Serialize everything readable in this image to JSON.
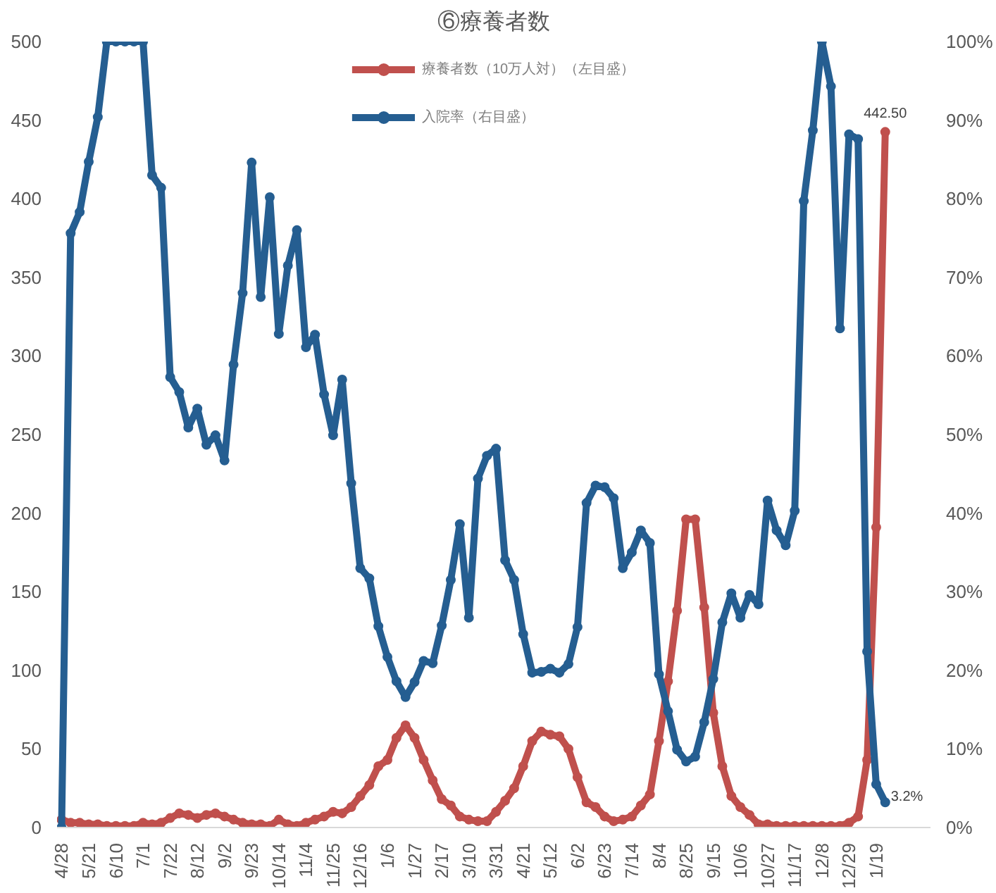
{
  "chart_data": {
    "type": "line",
    "title": "⑥療養者数",
    "categories": [
      "4/28",
      null,
      null,
      "5/21",
      null,
      null,
      "6/10",
      null,
      null,
      "7/1",
      null,
      null,
      "7/22",
      null,
      null,
      "8/12",
      null,
      null,
      "9/2",
      null,
      null,
      "9/23",
      null,
      null,
      "10/14",
      null,
      null,
      "11/4",
      null,
      null,
      "11/25",
      null,
      null,
      "12/16",
      null,
      null,
      "1/6",
      null,
      null,
      "1/27",
      null,
      null,
      "2/17",
      null,
      null,
      "3/10",
      null,
      null,
      "3/31",
      null,
      null,
      "4/21",
      null,
      null,
      "5/12",
      null,
      null,
      "6/2",
      null,
      null,
      "6/23",
      null,
      null,
      "7/14",
      null,
      null,
      "8/4",
      null,
      null,
      "8/25",
      null,
      null,
      "9/15",
      null,
      null,
      "10/6",
      null,
      null,
      "10/27",
      null,
      null,
      "11/17",
      null,
      null,
      "12/8",
      null,
      null,
      "12/29",
      null,
      null,
      "1/19",
      null
    ],
    "series": [
      {
        "name": "療養者数（10万人対）（左目盛）",
        "color": "#c0504d",
        "values": [
          5,
          3,
          3,
          2,
          2,
          1,
          1,
          1,
          1,
          3,
          2,
          3,
          6,
          9,
          8,
          6,
          8,
          9,
          7,
          5,
          3,
          2,
          2,
          1,
          5,
          2,
          1,
          3,
          5,
          7,
          10,
          9,
          13,
          20,
          27,
          39,
          43,
          57,
          65,
          57,
          43,
          30,
          18,
          14,
          7,
          5,
          4,
          4,
          10,
          17,
          25,
          39,
          55,
          61,
          59,
          58,
          50,
          32,
          16,
          13,
          7,
          4,
          5,
          7,
          14,
          21,
          55,
          93,
          138,
          196,
          196,
          140,
          73,
          39,
          20,
          13,
          8,
          2,
          2,
          1,
          1,
          1,
          1,
          1,
          1,
          1,
          1,
          3,
          7,
          43,
          191,
          442.5
        ],
        "value_labels": [
          null,
          null,
          null,
          null,
          null,
          null,
          null,
          null,
          null,
          null,
          null,
          null,
          null,
          null,
          null,
          null,
          null,
          null,
          null,
          null,
          null,
          null,
          null,
          null,
          null,
          null,
          null,
          null,
          null,
          null,
          null,
          null,
          null,
          null,
          null,
          null,
          null,
          null,
          null,
          null,
          null,
          null,
          null,
          null,
          null,
          null,
          null,
          null,
          null,
          null,
          null,
          null,
          null,
          null,
          null,
          null,
          null,
          null,
          null,
          null,
          null,
          null,
          null,
          null,
          null,
          null,
          null,
          null,
          null,
          null,
          null,
          null,
          null,
          null,
          null,
          null,
          null,
          null,
          null,
          null,
          null,
          null,
          null,
          null,
          null,
          null,
          null,
          null,
          null,
          null,
          null,
          "442.50"
        ]
      },
      {
        "name": "入院率（右目盛）",
        "color": "#255e91",
        "axis": "y2",
        "values": [
          0,
          75.6,
          78.3,
          84.7,
          90.4,
          100,
          100,
          100,
          100,
          100,
          83,
          81.4,
          57.3,
          55.4,
          50.9,
          53.3,
          48.7,
          49.9,
          46.7,
          58.9,
          68,
          84.6,
          67.5,
          80.2,
          62.8,
          71.5,
          76,
          61.1,
          62.7,
          55.1,
          49.9,
          57,
          43.8,
          33,
          31.7,
          25.6,
          21.7,
          18.6,
          16.6,
          18.5,
          21.2,
          20.9,
          25.7,
          31.5,
          38.6,
          26.7,
          44.4,
          47.3,
          48.2,
          34,
          31.5,
          24.6,
          19.7,
          19.8,
          20.2,
          19.7,
          20.8,
          25.5,
          41.3,
          43.5,
          43.3,
          41.9,
          33,
          35,
          37.8,
          36.2,
          19.5,
          14.8,
          9.9,
          8.4,
          9,
          13.4,
          18.9,
          26.1,
          29.8,
          26.7,
          29.6,
          28.4,
          41.6,
          37.8,
          35.9,
          40.3,
          79.7,
          88.7,
          100,
          94.3,
          63.5,
          88.2,
          87.6,
          22.4,
          5.5,
          3.2
        ],
        "value_labels": [
          null,
          null,
          null,
          null,
          null,
          null,
          null,
          null,
          null,
          null,
          null,
          null,
          null,
          null,
          null,
          null,
          null,
          null,
          null,
          null,
          null,
          null,
          null,
          null,
          null,
          null,
          null,
          null,
          null,
          null,
          null,
          null,
          null,
          null,
          null,
          null,
          null,
          null,
          null,
          null,
          null,
          null,
          null,
          null,
          null,
          null,
          null,
          null,
          null,
          null,
          null,
          null,
          null,
          null,
          null,
          null,
          null,
          null,
          null,
          null,
          null,
          null,
          null,
          null,
          null,
          null,
          null,
          null,
          null,
          null,
          null,
          null,
          null,
          null,
          null,
          null,
          null,
          null,
          null,
          null,
          null,
          null,
          null,
          null,
          null,
          null,
          null,
          null,
          null,
          null,
          null,
          "3.2%"
        ]
      }
    ],
    "ylim": [
      0,
      500
    ],
    "yticks": [
      0,
      50,
      100,
      150,
      200,
      250,
      300,
      350,
      400,
      450,
      500
    ],
    "y2lim": [
      0,
      100
    ],
    "y2ticks": [
      {
        "value": 0,
        "label": "0%"
      },
      {
        "value": 10,
        "label": "10%"
      },
      {
        "value": 20,
        "label": "20%"
      },
      {
        "value": 30,
        "label": "30%"
      },
      {
        "value": 40,
        "label": "40%"
      },
      {
        "value": 50,
        "label": "50%"
      },
      {
        "value": 60,
        "label": "60%"
      },
      {
        "value": 70,
        "label": "70%"
      },
      {
        "value": 80,
        "label": "80%"
      },
      {
        "value": 90,
        "label": "90%"
      },
      {
        "value": 100,
        "label": "100%"
      }
    ],
    "legend": "top",
    "marker": "circle",
    "line_style": "solid",
    "grid": false
  }
}
